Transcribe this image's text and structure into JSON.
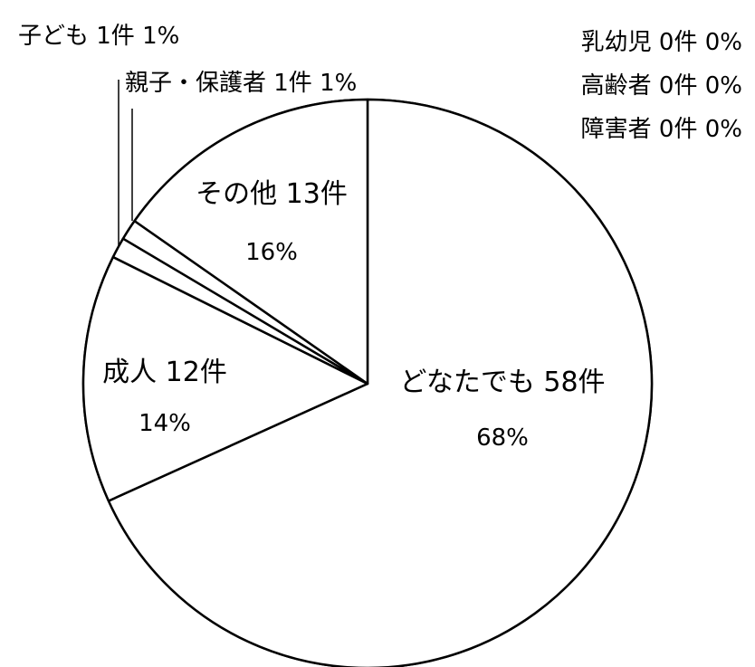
{
  "chart_data": {
    "type": "pie",
    "start_angle_deg": 0,
    "direction": "clockwise",
    "slices": [
      {
        "category": "どなたでも",
        "count": 58,
        "count_label": "58件",
        "percent_label": "68%"
      },
      {
        "category": "成人",
        "count": 12,
        "count_label": "12件",
        "percent_label": "14%"
      },
      {
        "category": "親子・保護者",
        "count": 1,
        "count_label": "1件",
        "percent_label": "1%"
      },
      {
        "category": "子ども",
        "count": 1,
        "count_label": "1件",
        "percent_label": "1%"
      },
      {
        "category": "その他",
        "count": 13,
        "count_label": "13件",
        "percent_label": "16%"
      },
      {
        "category": "乳幼児",
        "count": 0,
        "count_label": "0件",
        "percent_label": "0%"
      },
      {
        "category": "高齢者",
        "count": 0,
        "count_label": "0件",
        "percent_label": "0%"
      },
      {
        "category": "障害者",
        "count": 0,
        "count_label": "0件",
        "percent_label": "0%"
      }
    ],
    "colors": {
      "fill": "#ffffff",
      "stroke": "#000000"
    },
    "legend": "none"
  }
}
